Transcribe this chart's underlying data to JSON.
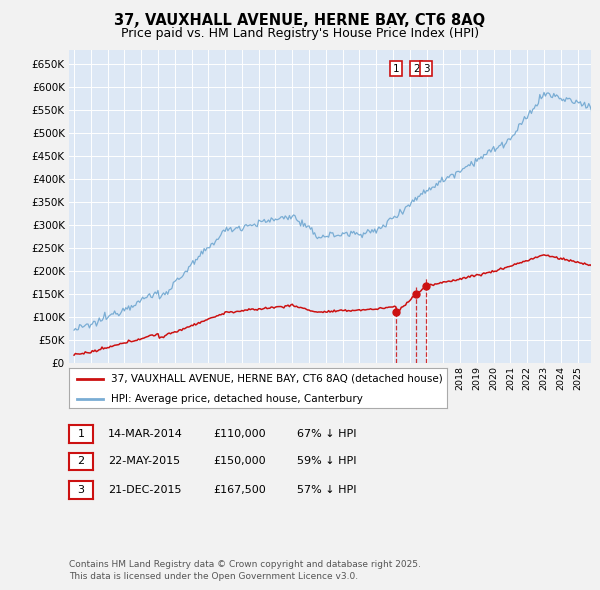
{
  "title_line1": "37, VAUXHALL AVENUE, HERNE BAY, CT6 8AQ",
  "title_line2": "Price paid vs. HM Land Registry's House Price Index (HPI)",
  "hpi_color": "#7aadd4",
  "price_color": "#cc1111",
  "transactions": [
    {
      "date_num": 2014.2,
      "price": 110000,
      "label": "1"
    },
    {
      "date_num": 2015.38,
      "price": 150000,
      "label": "2"
    },
    {
      "date_num": 2015.97,
      "price": 167500,
      "label": "3"
    }
  ],
  "legend_entries": [
    "37, VAUXHALL AVENUE, HERNE BAY, CT6 8AQ (detached house)",
    "HPI: Average price, detached house, Canterbury"
  ],
  "table_rows": [
    {
      "num": "1",
      "date": "14-MAR-2014",
      "price": "£110,000",
      "pct": "67% ↓ HPI"
    },
    {
      "num": "2",
      "date": "22-MAY-2015",
      "price": "£150,000",
      "pct": "59% ↓ HPI"
    },
    {
      "num": "3",
      "date": "21-DEC-2015",
      "price": "£167,500",
      "pct": "57% ↓ HPI"
    }
  ],
  "footnote": "Contains HM Land Registry data © Crown copyright and database right 2025.\nThis data is licensed under the Open Government Licence v3.0.",
  "yticks": [
    0,
    50000,
    100000,
    150000,
    200000,
    250000,
    300000,
    350000,
    400000,
    450000,
    500000,
    550000,
    600000,
    650000
  ],
  "xlim_start": 1994.7,
  "xlim_end": 2025.8,
  "ylim_max": 680000
}
